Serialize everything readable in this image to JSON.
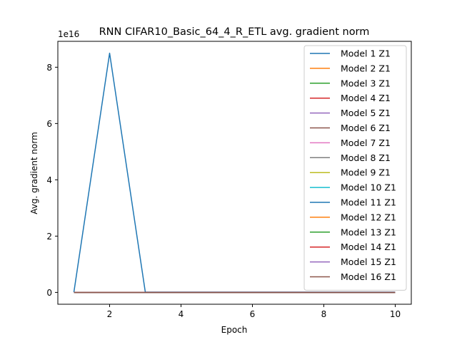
{
  "chart_data": {
    "type": "line",
    "title": "RNN CIFAR10_Basic_64_4_R_ETL avg. gradient norm",
    "xlabel": "Epoch",
    "ylabel": "Avg. gradient norm",
    "y_offset_label": "1e16",
    "xlim": [
      0.55,
      10.45
    ],
    "ylim": [
      -0.42,
      8.92
    ],
    "y_scale_note": "values in units of 1e16",
    "xticks": [
      2,
      4,
      6,
      8,
      10
    ],
    "yticks": [
      0,
      2,
      4,
      6,
      8
    ],
    "grid": false,
    "legend_position": "top-right",
    "x": [
      1,
      2,
      3,
      4,
      5,
      6,
      7,
      8,
      9,
      10
    ],
    "series": [
      {
        "name": "Model 1 Z1",
        "color": "#1f77b4",
        "values": [
          0.01,
          8.5,
          0.01,
          0.01,
          0.01,
          0.01,
          0.01,
          0.01,
          0.01,
          0.01
        ]
      },
      {
        "name": "Model 2 Z1",
        "color": "#ff7f0e",
        "values": [
          0,
          0,
          0,
          0,
          0,
          0,
          0,
          0,
          0,
          0
        ]
      },
      {
        "name": "Model 3 Z1",
        "color": "#2ca02c",
        "values": [
          0,
          0,
          0,
          0,
          0,
          0,
          0,
          0,
          0,
          0
        ]
      },
      {
        "name": "Model 4 Z1",
        "color": "#d62728",
        "values": [
          0,
          0,
          0,
          0,
          0,
          0,
          0,
          0,
          0,
          0
        ]
      },
      {
        "name": "Model 5 Z1",
        "color": "#9467bd",
        "values": [
          0,
          0,
          0,
          0,
          0,
          0,
          0,
          0,
          0,
          0
        ]
      },
      {
        "name": "Model 6 Z1",
        "color": "#8c564b",
        "values": [
          0,
          0,
          0,
          0,
          0,
          0,
          0,
          0,
          0,
          0
        ]
      },
      {
        "name": "Model 7 Z1",
        "color": "#e377c2",
        "values": [
          0,
          0,
          0,
          0,
          0,
          0,
          0,
          0,
          0,
          0
        ]
      },
      {
        "name": "Model 8 Z1",
        "color": "#7f7f7f",
        "values": [
          0,
          0,
          0,
          0,
          0,
          0,
          0,
          0,
          0,
          0
        ]
      },
      {
        "name": "Model 9 Z1",
        "color": "#bcbd22",
        "values": [
          0,
          0,
          0,
          0,
          0,
          0,
          0,
          0,
          0,
          0
        ]
      },
      {
        "name": "Model 10 Z1",
        "color": "#17becf",
        "values": [
          0,
          0,
          0,
          0,
          0,
          0,
          0,
          0,
          0,
          0
        ]
      },
      {
        "name": "Model 11 Z1",
        "color": "#1f77b4",
        "values": [
          0,
          0,
          0,
          0,
          0,
          0,
          0,
          0,
          0,
          0
        ]
      },
      {
        "name": "Model 12 Z1",
        "color": "#ff7f0e",
        "values": [
          0,
          0,
          0,
          0,
          0,
          0,
          0,
          0,
          0,
          0
        ]
      },
      {
        "name": "Model 13 Z1",
        "color": "#2ca02c",
        "values": [
          0,
          0,
          0,
          0,
          0,
          0,
          0,
          0,
          0,
          0
        ]
      },
      {
        "name": "Model 14 Z1",
        "color": "#d62728",
        "values": [
          0,
          0,
          0,
          0,
          0,
          0,
          0,
          0,
          0,
          0
        ]
      },
      {
        "name": "Model 15 Z1",
        "color": "#9467bd",
        "values": [
          0,
          0,
          0,
          0,
          0,
          0,
          0,
          0,
          0,
          0
        ]
      },
      {
        "name": "Model 16 Z1",
        "color": "#8c564b",
        "values": [
          0,
          0,
          0,
          0,
          0,
          0,
          0,
          0,
          0,
          0
        ]
      }
    ]
  }
}
